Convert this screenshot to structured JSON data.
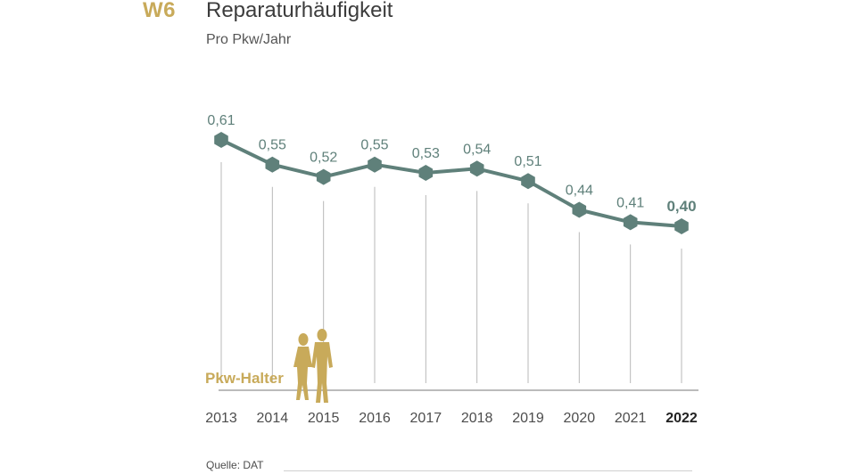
{
  "header": {
    "code": "W6",
    "title": "Reparaturhäufigkeit",
    "subtitle": "Pro Pkw/Jahr"
  },
  "footer": {
    "source": "Quelle: DAT"
  },
  "figure": {
    "label": "Pkw-Halter",
    "icon": "couple-silhouette-icon"
  },
  "colors": {
    "line": "#5f807a",
    "accent": "#c8aa5a",
    "grid": "#b8b8b8",
    "axis": "#777777"
  },
  "chart_data": {
    "type": "line",
    "title": "Reparaturhäufigkeit",
    "subtitle": "Pro Pkw/Jahr",
    "xlabel": "",
    "ylabel": "",
    "x": [
      "2013",
      "2014",
      "2015",
      "2016",
      "2017",
      "2018",
      "2019",
      "2020",
      "2021",
      "2022"
    ],
    "series": [
      {
        "values": [
          0.61,
          0.55,
          0.52,
          0.55,
          0.53,
          0.54,
          0.51,
          0.44,
          0.41,
          0.4
        ],
        "labels": [
          "0,61",
          "0,55",
          "0,52",
          "0,55",
          "0,53",
          "0,54",
          "0,51",
          "0,44",
          "0,41",
          "0,40"
        ]
      }
    ],
    "highlight": "2022",
    "grid": false,
    "legend": "none"
  }
}
